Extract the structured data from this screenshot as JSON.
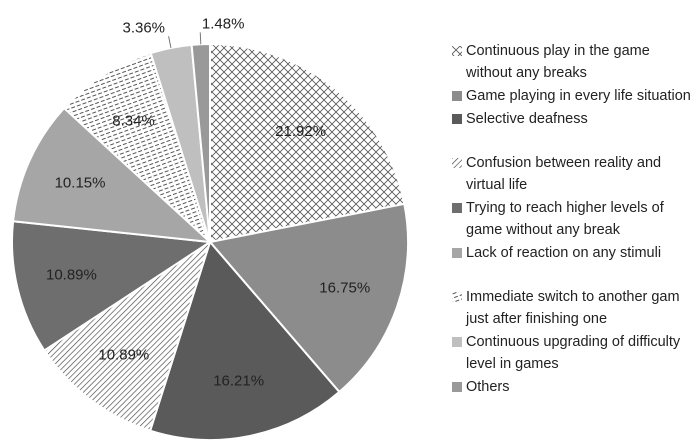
{
  "chart_data": {
    "type": "pie",
    "categories": [
      "Continuous play in the game without any breaks",
      "Game playing in every life situation",
      "Selective deafness",
      "Confusion between reality and virtual life",
      "Trying to reach higher levels of game without any break",
      "Lack of reaction on any stimuli",
      "Immediate switch to another gam just after finishing one",
      "Continuous upgrading of difficulty level in games",
      "Others"
    ],
    "values": [
      21.92,
      16.75,
      16.21,
      10.89,
      10.89,
      10.15,
      8.34,
      3.36,
      1.48
    ],
    "value_labels": [
      "21.92%",
      "16.75%",
      "16.21%",
      "10.89%",
      "10.89%",
      "10.15%",
      "8.34%",
      "3.36%",
      "1.48%"
    ],
    "colors": [
      "url(#pat-cross)",
      "#8c8c8c",
      "#5a5a5a",
      "url(#pat-diag)",
      "#6e6e6e",
      "#a6a6a6",
      "url(#pat-dash)",
      "#bfbfbf",
      "#999999"
    ],
    "legend": "right"
  }
}
